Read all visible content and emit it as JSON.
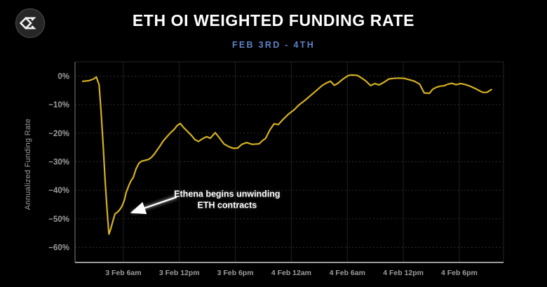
{
  "header": {
    "title": "ETH OI WEIGHTED FUNDING RATE",
    "subtitle": "FEB 3RD - 4TH",
    "title_color": "#ffffff",
    "subtitle_color": "#5d83c6"
  },
  "logo": {
    "icon": "sigma-diamond-icon",
    "circle_color": "#262626",
    "glyph_color": "#f2f2f2"
  },
  "chart_data": {
    "type": "line",
    "title": "ETH OI WEIGHTED FUNDING RATE",
    "subtitle": "FEB 3RD - 4TH",
    "ylabel": "Annualized Funding Rate",
    "x_unit": "hours since 3 Feb 12am",
    "xlim": [
      0.82,
      46.74
    ],
    "ylim": [
      -65.3,
      5.04
    ],
    "grid": "on",
    "line_color": "#d4b122",
    "axis_text_color": "#9d9d9d",
    "x_ticks": [
      {
        "t": 6,
        "label": "3 Feb 6am"
      },
      {
        "t": 12,
        "label": "3 Feb 12pm"
      },
      {
        "t": 18,
        "label": "3 Feb 6pm"
      },
      {
        "t": 24,
        "label": "4 Feb 12am"
      },
      {
        "t": 30,
        "label": "4 Feb 6am"
      },
      {
        "t": 36,
        "label": "4 Feb 12pm"
      },
      {
        "t": 42,
        "label": "4 Feb 6pm"
      }
    ],
    "y_ticks": [
      {
        "v": 0,
        "label": "0%"
      },
      {
        "v": -10,
        "label": "−10%"
      },
      {
        "v": -20,
        "label": "−20%"
      },
      {
        "v": -30,
        "label": "−30%"
      },
      {
        "v": -40,
        "label": "−40%"
      },
      {
        "v": -50,
        "label": "−50%"
      },
      {
        "v": -60,
        "label": "−60%"
      }
    ],
    "series": [
      {
        "name": "ETH OI weighted funding rate (annualized)",
        "points": [
          [
            1.65,
            -1.8
          ],
          [
            2.3,
            -1.6
          ],
          [
            2.8,
            -1.0
          ],
          [
            3.1,
            -0.3
          ],
          [
            3.4,
            -3.0
          ],
          [
            3.6,
            -12.0
          ],
          [
            3.85,
            -25.0
          ],
          [
            4.05,
            -37.0
          ],
          [
            4.28,
            -48.0
          ],
          [
            4.45,
            -55.4
          ],
          [
            4.65,
            -53.5
          ],
          [
            4.9,
            -50.5
          ],
          [
            5.1,
            -48.3
          ],
          [
            5.4,
            -47.6
          ],
          [
            5.65,
            -46.6
          ],
          [
            5.85,
            -45.6
          ],
          [
            6.1,
            -43.5
          ],
          [
            6.3,
            -40.8
          ],
          [
            6.6,
            -38.2
          ],
          [
            6.85,
            -36.5
          ],
          [
            7.05,
            -35.6
          ],
          [
            7.35,
            -32.6
          ],
          [
            7.65,
            -30.6
          ],
          [
            7.95,
            -29.8
          ],
          [
            8.35,
            -29.5
          ],
          [
            8.7,
            -29.2
          ],
          [
            9.0,
            -28.5
          ],
          [
            9.3,
            -27.4
          ],
          [
            9.6,
            -26.0
          ],
          [
            9.9,
            -24.6
          ],
          [
            10.3,
            -22.6
          ],
          [
            10.65,
            -21.3
          ],
          [
            11.0,
            -20.0
          ],
          [
            11.4,
            -18.8
          ],
          [
            11.8,
            -17.2
          ],
          [
            12.1,
            -16.6
          ],
          [
            12.45,
            -18.0
          ],
          [
            12.85,
            -19.3
          ],
          [
            13.3,
            -20.8
          ],
          [
            13.65,
            -22.2
          ],
          [
            14.05,
            -22.9
          ],
          [
            14.5,
            -21.9
          ],
          [
            14.95,
            -21.2
          ],
          [
            15.3,
            -21.8
          ],
          [
            15.85,
            -19.8
          ],
          [
            16.35,
            -21.9
          ],
          [
            16.8,
            -23.8
          ],
          [
            17.35,
            -24.8
          ],
          [
            17.8,
            -25.3
          ],
          [
            18.25,
            -25.2
          ],
          [
            18.7,
            -23.9
          ],
          [
            19.2,
            -23.3
          ],
          [
            19.8,
            -23.9
          ],
          [
            20.25,
            -23.8
          ],
          [
            20.55,
            -23.7
          ],
          [
            20.95,
            -22.5
          ],
          [
            21.25,
            -21.8
          ],
          [
            21.7,
            -18.9
          ],
          [
            22.15,
            -16.7
          ],
          [
            22.6,
            -17.0
          ],
          [
            23.1,
            -15.2
          ],
          [
            23.7,
            -13.3
          ],
          [
            24.3,
            -11.8
          ],
          [
            24.85,
            -10.0
          ],
          [
            25.45,
            -8.5
          ],
          [
            26.1,
            -6.7
          ],
          [
            26.7,
            -5.0
          ],
          [
            27.3,
            -3.3
          ],
          [
            27.75,
            -2.4
          ],
          [
            28.2,
            -1.8
          ],
          [
            28.6,
            -3.2
          ],
          [
            28.95,
            -2.6
          ],
          [
            29.5,
            -1.1
          ],
          [
            30.1,
            0.2
          ],
          [
            30.45,
            0.4
          ],
          [
            31.05,
            0.3
          ],
          [
            31.45,
            -0.5
          ],
          [
            31.95,
            -1.6
          ],
          [
            32.5,
            -3.3
          ],
          [
            32.95,
            -2.6
          ],
          [
            33.4,
            -3.1
          ],
          [
            33.9,
            -2.2
          ],
          [
            34.45,
            -1.0
          ],
          [
            34.95,
            -0.8
          ],
          [
            35.55,
            -0.7
          ],
          [
            36.1,
            -0.8
          ],
          [
            36.6,
            -1.2
          ],
          [
            37.2,
            -1.8
          ],
          [
            37.75,
            -2.8
          ],
          [
            38.05,
            -4.7
          ],
          [
            38.25,
            -5.9
          ],
          [
            38.8,
            -6.0
          ],
          [
            39.15,
            -4.6
          ],
          [
            39.55,
            -3.9
          ],
          [
            40.0,
            -3.5
          ],
          [
            40.35,
            -3.4
          ],
          [
            40.8,
            -2.8
          ],
          [
            41.2,
            -2.5
          ],
          [
            41.65,
            -3.0
          ],
          [
            42.15,
            -2.6
          ],
          [
            42.7,
            -3.0
          ],
          [
            43.2,
            -3.6
          ],
          [
            43.75,
            -4.4
          ],
          [
            44.2,
            -5.2
          ],
          [
            44.55,
            -5.7
          ],
          [
            44.95,
            -5.7
          ],
          [
            45.25,
            -5.1
          ],
          [
            45.45,
            -4.7
          ]
        ]
      }
    ],
    "annotation": {
      "text": [
        "Ethena begins unwinding",
        "ETH contracts"
      ],
      "text_center": [
        17.12,
        -43.5
      ],
      "arrow_from": [
        11.7,
        -42.4
      ],
      "arrow_to": [
        6.9,
        -47.8
      ],
      "color": "#ffffff"
    }
  }
}
